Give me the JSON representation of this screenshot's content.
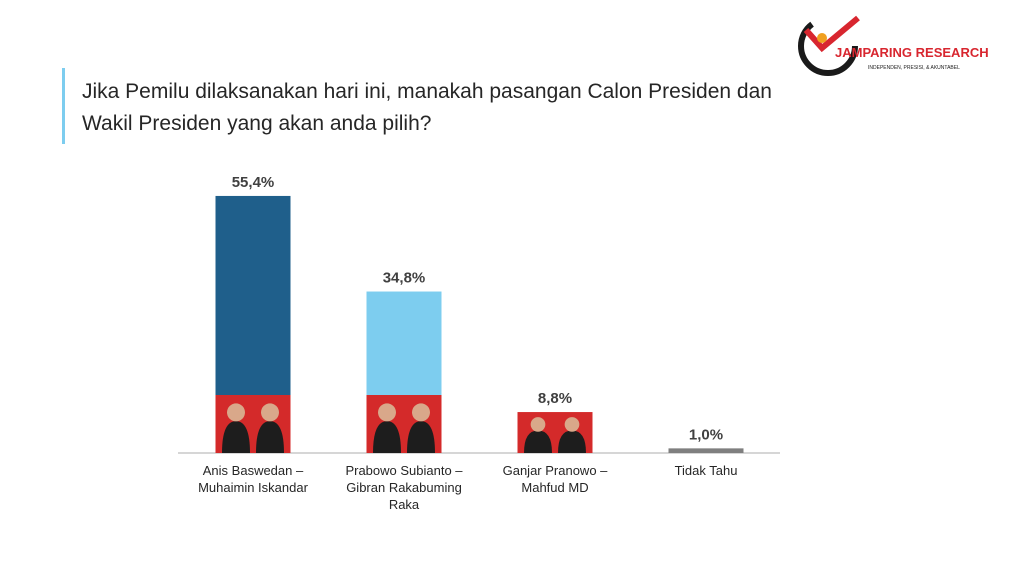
{
  "logo": {
    "name": "JAMPARING RESEARCH",
    "tagline": "INDEPENDEN, PRESISI, & AKUNTABEL"
  },
  "chart_data": {
    "type": "bar",
    "title": "Jika Pemilu dilaksanakan hari ini, manakah pasangan Calon Presiden dan Wakil Presiden yang akan anda pilih?",
    "categories": [
      "Anis Baswedan – Muhaimin Iskandar",
      "Prabowo Subianto – Gibran Rakabuming Raka",
      "Ganjar Pranowo – Mahfud MD",
      "Tidak Tahu"
    ],
    "values": [
      55.4,
      34.8,
      8.8,
      1.0
    ],
    "value_labels": [
      "55,4%",
      "34,8%",
      "8,8%",
      "1,0%"
    ],
    "colors": [
      "#1f5f8b",
      "#7dcdef",
      "#d42a2a",
      "#7f7f7f"
    ]
  }
}
